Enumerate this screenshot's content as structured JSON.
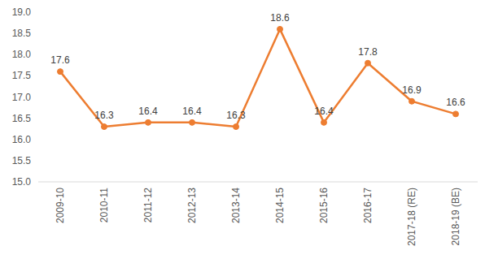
{
  "chart_data": {
    "type": "line",
    "categories": [
      "2009-10",
      "2010-11",
      "2011-12",
      "2012-13",
      "2013-14",
      "2014-15",
      "2015-16",
      "2016-17",
      "2017-18 (RE)",
      "2018-19 (BE)"
    ],
    "values": [
      17.6,
      16.3,
      16.4,
      16.4,
      16.3,
      18.6,
      16.4,
      17.8,
      16.9,
      16.6
    ],
    "color": "#ED7D31",
    "marker": "circle",
    "data_labels": true,
    "grid": false,
    "ylim": [
      15,
      19
    ],
    "yticks": [
      {
        "value": 15,
        "label": "15.0"
      },
      15.5,
      {
        "value": 16,
        "label": "16.0"
      },
      16.5,
      {
        "value": 17,
        "label": "17.0"
      },
      17.5,
      {
        "value": 18,
        "label": "18.0"
      },
      18.5,
      {
        "value": 19,
        "label": "19.0"
      }
    ]
  }
}
